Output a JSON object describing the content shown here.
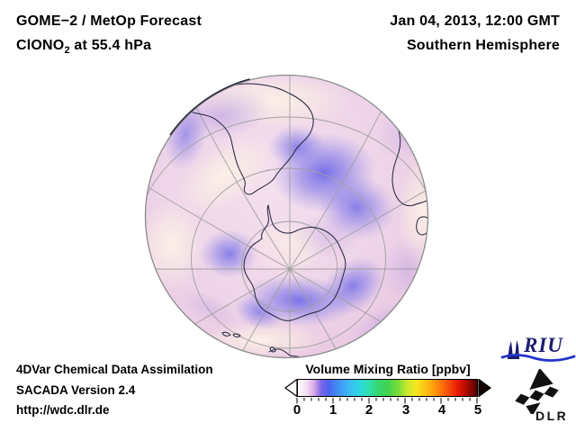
{
  "header": {
    "title_line1": "GOME−2 / MetOp Forecast",
    "title_line2_prefix": "ClONO",
    "title_line2_sub": "2",
    "title_line2_suffix": " at 55.4 hPa",
    "datetime": "Jan 04, 2013, 12:00 GMT",
    "region": "Southern Hemisphere"
  },
  "footer": {
    "line1": "4DVar Chemical Data Assimilation",
    "line2": "SACADA Version 2.4",
    "line3": "http://wdc.dlr.de"
  },
  "colorbar": {
    "label": "Volume Mixing Ratio [ppbv]",
    "tick_labels": [
      "0",
      "1",
      "2",
      "3",
      "4",
      "5"
    ]
  },
  "logos": {
    "riu_text": "RIU",
    "dlr_text": "DLR"
  },
  "colors": {
    "globe_base_pink": "#f0d6ea",
    "enhancement_blue": "#6f6ae6",
    "coastline": "#20203a",
    "graticule": "#a0a0a0",
    "riu_blue": "#2233cc",
    "riu_navy": "#1c1c70"
  },
  "chart_data": {
    "type": "heatmap",
    "title": "GOME−2 / MetOp Forecast ClONO2 at 55.4 hPa",
    "subtitle": "Jan 04, 2013, 12:00 GMT — Southern Hemisphere",
    "projection": "orthographic globe, South Pole centered, South America upper-left, Africa right, Antarctica center",
    "colorbar": {
      "label": "Volume Mixing Ratio [ppbv]",
      "range": [
        0,
        5
      ],
      "ticks": [
        0,
        1,
        2,
        3,
        4,
        5
      ],
      "minor_ticks_per_interval": 5,
      "left_endcap": "open arrow (white)",
      "right_endcap": "open arrow (black)",
      "gradient_stops": [
        {
          "pos": 0,
          "color": "#ffffff"
        },
        {
          "pos": 5,
          "color": "#f2dcf0"
        },
        {
          "pos": 9,
          "color": "#d9a8e8"
        },
        {
          "pos": 13,
          "color": "#7a66e8"
        },
        {
          "pos": 17,
          "color": "#4f63ee"
        },
        {
          "pos": 22,
          "color": "#3f8cf4"
        },
        {
          "pos": 28,
          "color": "#3fb6f8"
        },
        {
          "pos": 33,
          "color": "#2ed3e8"
        },
        {
          "pos": 38,
          "color": "#2ee0c0"
        },
        {
          "pos": 44,
          "color": "#35d878"
        },
        {
          "pos": 50,
          "color": "#3fd24f"
        },
        {
          "pos": 56,
          "color": "#7adc3a"
        },
        {
          "pos": 61,
          "color": "#c8e82e"
        },
        {
          "pos": 66,
          "color": "#f4e81e"
        },
        {
          "pos": 71,
          "color": "#fbc313"
        },
        {
          "pos": 76,
          "color": "#fd9a0e"
        },
        {
          "pos": 81,
          "color": "#fb6a09"
        },
        {
          "pos": 86,
          "color": "#f43a06"
        },
        {
          "pos": 90,
          "color": "#e01505"
        },
        {
          "pos": 94,
          "color": "#b00a02"
        },
        {
          "pos": 100,
          "color": "#500000"
        }
      ]
    },
    "map_values_estimated": [
      {
        "area": "large enhancement lobe, mid-latitudes north/east of Antarctica (center-top of disc)",
        "approx_value_ppbv": 0.6
      },
      {
        "area": "arc along Antarctic coast, lower-center of disc",
        "approx_value_ppbv": 0.6
      },
      {
        "area": "patch west of Antarctic Peninsula (left-center)",
        "approx_value_ppbv": 0.5
      },
      {
        "area": "band over northern South America / upper-left limb",
        "approx_value_ppbv": 0.45
      },
      {
        "area": "pale background over most of hemisphere",
        "approx_value_ppbv": 0.2
      },
      {
        "area": "pale region directly over the South Pole",
        "approx_value_ppbv": 0.25
      }
    ]
  }
}
